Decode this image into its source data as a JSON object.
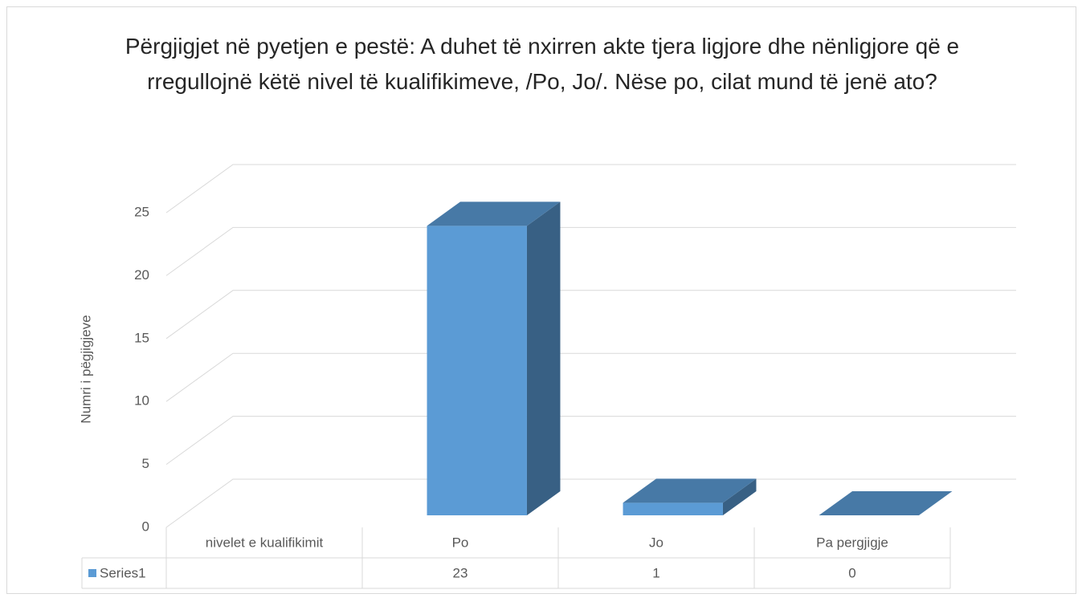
{
  "chart_data": {
    "type": "bar3d",
    "title": "Përgjigjet në pyetjen e pestë: A duhet të nxirren akte tjera ligjore dhe nënligjore që e rregullojnë këtë nivel të kualifikimeve, /Po, Jo/. Nëse po, cilat mund të jenë ato?",
    "y_label": "Numri i pëgjigjeve",
    "categories": [
      "nivelet e kualifikimit",
      "Po",
      "Jo",
      "Pa pergjigje"
    ],
    "series": [
      {
        "name": "Series1",
        "color": "#5b9bd5",
        "values": [
          null,
          23,
          1,
          0
        ]
      }
    ],
    "ylim": [
      0,
      25
    ],
    "yticks": [
      0,
      5,
      10,
      15,
      20,
      25
    ],
    "grid": true,
    "data_table": true
  }
}
